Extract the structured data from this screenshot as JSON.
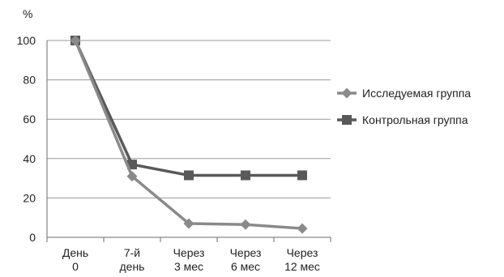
{
  "chart_data": {
    "type": "line",
    "ylabel": "%",
    "ylim": [
      0,
      100
    ],
    "yticks": [
      0,
      20,
      40,
      60,
      80,
      100
    ],
    "grid": true,
    "legend": "right",
    "categories": [
      [
        "День",
        "0"
      ],
      [
        "7-й",
        "день"
      ],
      [
        "Через",
        "3 мес"
      ],
      [
        "Через",
        "6 мес"
      ],
      [
        "Через",
        "12 мес"
      ]
    ],
    "series": [
      {
        "name": "Исследуемая группа",
        "marker": "diamond",
        "color": "#8a8a8a",
        "values": [
          100,
          31,
          7,
          6.5,
          4.5
        ]
      },
      {
        "name": "Контрольная группа",
        "marker": "square",
        "color": "#595959",
        "values": [
          100,
          37,
          31.5,
          31.5,
          31.5
        ]
      }
    ]
  }
}
